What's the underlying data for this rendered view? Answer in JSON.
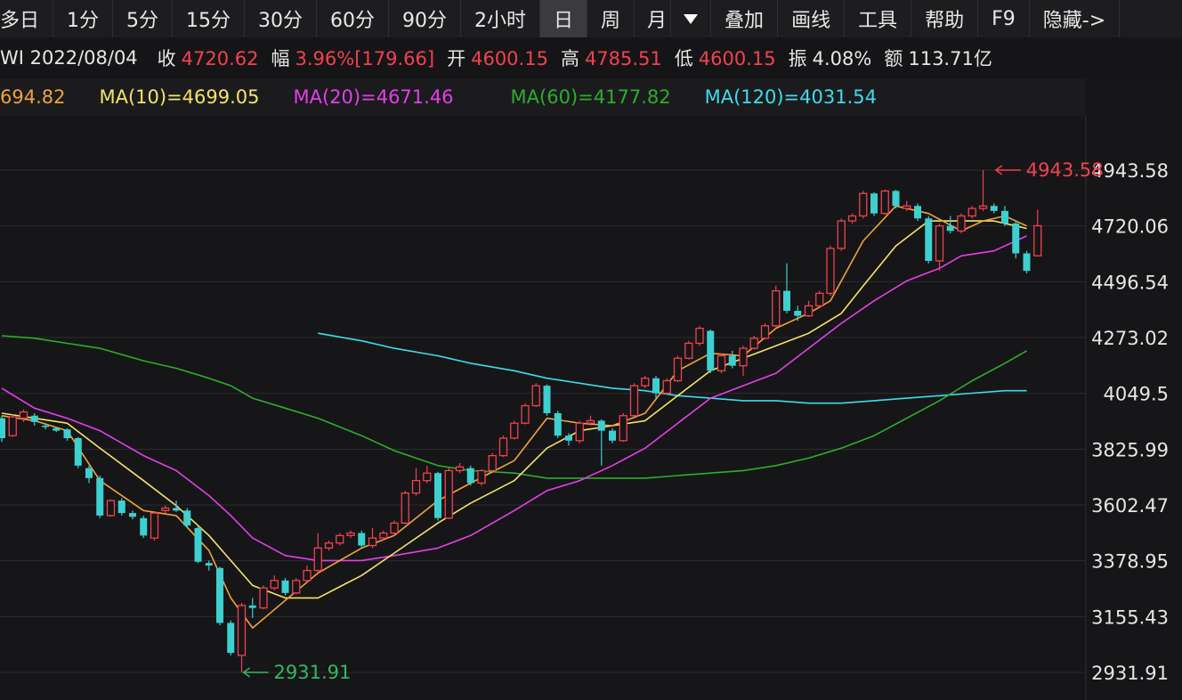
{
  "toolbar": {
    "periods": [
      {
        "label": "多日",
        "active": false
      },
      {
        "label": "1分",
        "active": false
      },
      {
        "label": "5分",
        "active": false
      },
      {
        "label": "15分",
        "active": false
      },
      {
        "label": "30分",
        "active": false
      },
      {
        "label": "60分",
        "active": false
      },
      {
        "label": "90分",
        "active": false
      },
      {
        "label": "2小时",
        "active": false
      },
      {
        "label": "日",
        "active": true
      },
      {
        "label": "周",
        "active": false
      },
      {
        "label": "月",
        "active": false
      }
    ],
    "dropdown_icon": "triangle-down-icon",
    "tools": [
      "叠加",
      "画线",
      "工具",
      "帮助",
      "F9",
      "隐藏->"
    ]
  },
  "info": {
    "date": "WI 2022/08/04",
    "close_label": "收",
    "close_value": "4720.62",
    "change_label": "幅",
    "change_value": "3.96%[179.66]",
    "open_label": "开",
    "open_value": "4600.15",
    "high_label": "高",
    "high_value": "4785.51",
    "low_label": "低",
    "low_value": "4600.15",
    "amplitude_label": "振",
    "amplitude_value": "4.08%",
    "amount_label": "额",
    "amount_value": "113.71亿"
  },
  "ma_legend": [
    {
      "text": "694.82",
      "color": "#f0a33a"
    },
    {
      "text": "MA(10)=4699.05",
      "color": "#f5e36a"
    },
    {
      "text": "MA(20)=4671.46",
      "color": "#e43fe8"
    },
    {
      "text": "MA(60)=4177.82",
      "color": "#2dad2d"
    },
    {
      "text": "MA(120)=4031.54",
      "color": "#3fdcec"
    }
  ],
  "colors": {
    "up": "#f2414f",
    "down": "#3ecfd0",
    "grid": "#2c2c31",
    "axis_text": "#e6e6e6"
  },
  "chart_data": {
    "type": "candlestick",
    "y_ticks": [
      2931.91,
      3155.43,
      3378.95,
      3602.47,
      3825.99,
      4049.5,
      4273.02,
      4496.54,
      4720.06,
      4943.58
    ],
    "y_tick_labels": [
      "2931.91",
      "3155.43",
      "3378.95",
      "3602.47",
      "3825.99",
      "4049.5",
      "4273.02",
      "4496.54",
      "4720.06",
      "4943.58"
    ],
    "ylim": [
      2910,
      5090
    ],
    "annotations": {
      "high": {
        "label": "4943.58",
        "value": 4943.58,
        "index": 91
      },
      "low": {
        "label": "2931.91",
        "value": 2931.91,
        "index": 22
      }
    },
    "candles": [
      [
        3950,
        3870,
        3960,
        3855
      ],
      [
        3880,
        3955,
        3965,
        3875
      ],
      [
        3950,
        3975,
        3985,
        3935
      ],
      [
        3960,
        3935,
        3970,
        3920
      ],
      [
        3920,
        3915,
        3930,
        3905
      ],
      [
        3910,
        3900,
        3915,
        3895
      ],
      [
        3905,
        3870,
        3910,
        3860
      ],
      [
        3870,
        3760,
        3875,
        3750
      ],
      [
        3750,
        3710,
        3760,
        3690
      ],
      [
        3710,
        3560,
        3720,
        3550
      ],
      [
        3560,
        3620,
        3625,
        3555
      ],
      [
        3620,
        3570,
        3630,
        3560
      ],
      [
        3570,
        3555,
        3580,
        3545
      ],
      [
        3550,
        3480,
        3560,
        3470
      ],
      [
        3470,
        3570,
        3575,
        3460
      ],
      [
        3580,
        3590,
        3600,
        3570
      ],
      [
        3590,
        3580,
        3620,
        3575
      ],
      [
        3580,
        3520,
        3590,
        3510
      ],
      [
        3510,
        3375,
        3520,
        3370
      ],
      [
        3370,
        3360,
        3380,
        3340
      ],
      [
        3350,
        3130,
        3355,
        3120
      ],
      [
        3130,
        3010,
        3140,
        3000
      ],
      [
        3000,
        3200,
        3210,
        2931.91
      ],
      [
        3200,
        3190,
        3230,
        3150
      ],
      [
        3190,
        3270,
        3280,
        3185
      ],
      [
        3270,
        3300,
        3320,
        3260
      ],
      [
        3300,
        3250,
        3310,
        3240
      ],
      [
        3250,
        3300,
        3310,
        3245
      ],
      [
        3300,
        3340,
        3360,
        3295
      ],
      [
        3340,
        3430,
        3490,
        3330
      ],
      [
        3430,
        3450,
        3460,
        3420
      ],
      [
        3450,
        3480,
        3490,
        3440
      ],
      [
        3480,
        3490,
        3500,
        3470
      ],
      [
        3490,
        3440,
        3500,
        3430
      ],
      [
        3440,
        3470,
        3510,
        3430
      ],
      [
        3470,
        3490,
        3500,
        3460
      ],
      [
        3490,
        3530,
        3540,
        3480
      ],
      [
        3530,
        3650,
        3660,
        3525
      ],
      [
        3650,
        3700,
        3750,
        3640
      ],
      [
        3700,
        3730,
        3760,
        3690
      ],
      [
        3730,
        3550,
        3735,
        3540
      ],
      [
        3550,
        3740,
        3750,
        3545
      ],
      [
        3740,
        3755,
        3770,
        3730
      ],
      [
        3750,
        3690,
        3760,
        3680
      ],
      [
        3690,
        3740,
        3745,
        3680
      ],
      [
        3740,
        3800,
        3810,
        3735
      ],
      [
        3800,
        3870,
        3880,
        3795
      ],
      [
        3870,
        3930,
        3940,
        3865
      ],
      [
        3930,
        4000,
        4010,
        3925
      ],
      [
        4000,
        4080,
        4090,
        3995
      ],
      [
        4080,
        3970,
        4085,
        3960
      ],
      [
        3970,
        3880,
        3980,
        3870
      ],
      [
        3880,
        3860,
        3890,
        3840
      ],
      [
        3860,
        3930,
        3940,
        3850
      ],
      [
        3930,
        3940,
        3960,
        3920
      ],
      [
        3940,
        3900,
        3945,
        3760
      ],
      [
        3900,
        3860,
        3910,
        3850
      ],
      [
        3860,
        3960,
        3970,
        3855
      ],
      [
        3960,
        4080,
        4090,
        3955
      ],
      [
        4080,
        4110,
        4120,
        4070
      ],
      [
        4110,
        4050,
        4120,
        4030
      ],
      [
        4050,
        4100,
        4110,
        4045
      ],
      [
        4100,
        4190,
        4200,
        4095
      ],
      [
        4190,
        4250,
        4260,
        4185
      ],
      [
        4250,
        4310,
        4320,
        4240
      ],
      [
        4300,
        4140,
        4305,
        4130
      ],
      [
        4140,
        4200,
        4210,
        4130
      ],
      [
        4200,
        4160,
        4220,
        4150
      ],
      [
        4160,
        4230,
        4240,
        4120
      ],
      [
        4230,
        4270,
        4280,
        4225
      ],
      [
        4270,
        4320,
        4330,
        4265
      ],
      [
        4320,
        4460,
        4480,
        4315
      ],
      [
        4460,
        4380,
        4570,
        4370
      ],
      [
        4380,
        4360,
        4400,
        4340
      ],
      [
        4360,
        4400,
        4420,
        4355
      ],
      [
        4400,
        4450,
        4460,
        4395
      ],
      [
        4450,
        4630,
        4640,
        4440
      ],
      [
        4630,
        4740,
        4750,
        4620
      ],
      [
        4740,
        4760,
        4770,
        4730
      ],
      [
        4760,
        4850,
        4860,
        4750
      ],
      [
        4850,
        4770,
        4855,
        4760
      ],
      [
        4770,
        4860,
        4865,
        4765
      ],
      [
        4860,
        4800,
        4865,
        4790
      ],
      [
        4790,
        4800,
        4820,
        4780
      ],
      [
        4800,
        4750,
        4810,
        4740
      ],
      [
        4750,
        4580,
        4760,
        4570
      ],
      [
        4580,
        4720,
        4730,
        4540
      ],
      [
        4720,
        4700,
        4760,
        4690
      ],
      [
        4700,
        4760,
        4770,
        4690
      ],
      [
        4760,
        4790,
        4800,
        4750
      ],
      [
        4790,
        4800,
        4943.58,
        4780
      ],
      [
        4800,
        4780,
        4810,
        4770
      ],
      [
        4780,
        4730,
        4800,
        4720
      ],
      [
        4730,
        4610,
        4740,
        4590
      ],
      [
        4610,
        4540,
        4620,
        4530
      ],
      [
        4600.15,
        4720.62,
        4785.51,
        4600.15
      ]
    ],
    "ma5_values": [
      [
        0,
        3960
      ],
      [
        3,
        3940
      ],
      [
        6,
        3900
      ],
      [
        9,
        3700
      ],
      [
        13,
        3580
      ],
      [
        16,
        3560
      ],
      [
        19,
        3420
      ],
      [
        21,
        3230
      ],
      [
        23,
        3110
      ],
      [
        26,
        3220
      ],
      [
        29,
        3330
      ],
      [
        33,
        3430
      ],
      [
        36,
        3480
      ],
      [
        40,
        3620
      ],
      [
        43,
        3690
      ],
      [
        47,
        3780
      ],
      [
        50,
        3950
      ],
      [
        53,
        3930
      ],
      [
        56,
        3920
      ],
      [
        59,
        3970
      ],
      [
        62,
        4140
      ],
      [
        65,
        4210
      ],
      [
        68,
        4200
      ],
      [
        71,
        4310
      ],
      [
        74,
        4370
      ],
      [
        76,
        4420
      ],
      [
        79,
        4660
      ],
      [
        82,
        4800
      ],
      [
        85,
        4770
      ],
      [
        88,
        4700
      ],
      [
        90,
        4740
      ],
      [
        92,
        4760
      ],
      [
        94,
        4720
      ]
    ],
    "ma10_values": [
      [
        0,
        3970
      ],
      [
        3,
        3950
      ],
      [
        6,
        3930
      ],
      [
        9,
        3830
      ],
      [
        13,
        3700
      ],
      [
        16,
        3600
      ],
      [
        19,
        3480
      ],
      [
        21,
        3380
      ],
      [
        23,
        3280
      ],
      [
        26,
        3230
      ],
      [
        29,
        3230
      ],
      [
        33,
        3320
      ],
      [
        36,
        3410
      ],
      [
        40,
        3530
      ],
      [
        43,
        3610
      ],
      [
        47,
        3700
      ],
      [
        50,
        3830
      ],
      [
        53,
        3900
      ],
      [
        56,
        3920
      ],
      [
        59,
        3940
      ],
      [
        62,
        4040
      ],
      [
        65,
        4140
      ],
      [
        68,
        4190
      ],
      [
        71,
        4240
      ],
      [
        74,
        4290
      ],
      [
        77,
        4370
      ],
      [
        79,
        4480
      ],
      [
        82,
        4640
      ],
      [
        85,
        4740
      ],
      [
        88,
        4740
      ],
      [
        91,
        4740
      ],
      [
        94,
        4710
      ]
    ],
    "ma20_values": [
      [
        0,
        4070
      ],
      [
        3,
        3990
      ],
      [
        6,
        3950
      ],
      [
        9,
        3900
      ],
      [
        13,
        3800
      ],
      [
        16,
        3740
      ],
      [
        19,
        3640
      ],
      [
        21,
        3560
      ],
      [
        23,
        3470
      ],
      [
        26,
        3400
      ],
      [
        29,
        3380
      ],
      [
        33,
        3380
      ],
      [
        36,
        3400
      ],
      [
        40,
        3430
      ],
      [
        43,
        3480
      ],
      [
        47,
        3580
      ],
      [
        50,
        3660
      ],
      [
        53,
        3700
      ],
      [
        56,
        3760
      ],
      [
        59,
        3830
      ],
      [
        62,
        3930
      ],
      [
        65,
        4030
      ],
      [
        68,
        4080
      ],
      [
        71,
        4130
      ],
      [
        74,
        4230
      ],
      [
        77,
        4330
      ],
      [
        80,
        4420
      ],
      [
        83,
        4500
      ],
      [
        86,
        4550
      ],
      [
        88,
        4600
      ],
      [
        91,
        4620
      ],
      [
        94,
        4680
      ]
    ],
    "ma60_values": [
      [
        0,
        4280
      ],
      [
        3,
        4270
      ],
      [
        6,
        4250
      ],
      [
        9,
        4230
      ],
      [
        13,
        4180
      ],
      [
        16,
        4150
      ],
      [
        19,
        4110
      ],
      [
        21,
        4080
      ],
      [
        23,
        4030
      ],
      [
        26,
        3990
      ],
      [
        29,
        3950
      ],
      [
        33,
        3880
      ],
      [
        36,
        3820
      ],
      [
        40,
        3760
      ],
      [
        43,
        3740
      ],
      [
        47,
        3730
      ],
      [
        50,
        3710
      ],
      [
        53,
        3710
      ],
      [
        56,
        3710
      ],
      [
        59,
        3710
      ],
      [
        62,
        3720
      ],
      [
        65,
        3730
      ],
      [
        68,
        3740
      ],
      [
        71,
        3760
      ],
      [
        74,
        3790
      ],
      [
        77,
        3830
      ],
      [
        80,
        3880
      ],
      [
        83,
        3950
      ],
      [
        86,
        4020
      ],
      [
        89,
        4100
      ],
      [
        92,
        4170
      ],
      [
        94,
        4220
      ]
    ],
    "ma120_values": [
      [
        29,
        4290
      ],
      [
        33,
        4260
      ],
      [
        36,
        4230
      ],
      [
        40,
        4200
      ],
      [
        43,
        4170
      ],
      [
        47,
        4140
      ],
      [
        50,
        4110
      ],
      [
        53,
        4090
      ],
      [
        56,
        4070
      ],
      [
        59,
        4060
      ],
      [
        62,
        4040
      ],
      [
        65,
        4030
      ],
      [
        68,
        4020
      ],
      [
        71,
        4020
      ],
      [
        74,
        4010
      ],
      [
        77,
        4010
      ],
      [
        80,
        4020
      ],
      [
        83,
        4030
      ],
      [
        86,
        4040
      ],
      [
        89,
        4050
      ],
      [
        92,
        4060
      ],
      [
        94,
        4060
      ]
    ]
  }
}
